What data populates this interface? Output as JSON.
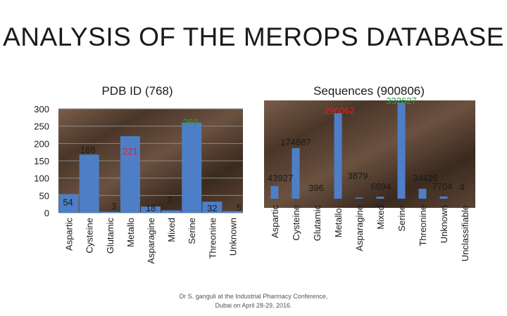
{
  "slide": {
    "title": "ANALYSIS OF THE MEROPS DATABASE",
    "footer": "Dr S. ganguli at the Industrial Pharmacy Conference, Dubai on April 28-29, 2016."
  },
  "colors": {
    "bar": "#4e7fc6",
    "panel_dark": "#3a2a1f",
    "panel_light": "#6b5140"
  },
  "chart_data": [
    {
      "type": "bar",
      "title": "PDB ID (768)",
      "categories": [
        "Aspartic",
        "Cysteine",
        "Glutamic",
        "Metallo",
        "Asparagine",
        "Mixed",
        "Serine",
        "Threonine",
        "Unknown"
      ],
      "values": [
        54,
        168,
        3,
        221,
        18,
        7,
        260,
        32,
        5
      ],
      "data_labels": [
        "54",
        "168",
        "3",
        "221",
        "18",
        "7",
        "260",
        "32",
        "5"
      ],
      "label_colors": [
        "#1a1a1a",
        "#1a1a1a",
        "#1a1a1a",
        "#e02020",
        "#1a1a1a",
        "#1a1a1a",
        "#27a34a",
        "#1a1a1a",
        "#1a1a1a"
      ],
      "yticks": [
        "0",
        "50",
        "100",
        "150",
        "200",
        "250",
        "300"
      ],
      "ylim": [
        0,
        300
      ],
      "xlabel": "",
      "ylabel": "",
      "grid": true
    },
    {
      "type": "bar",
      "title": "Sequences (900806)",
      "categories": [
        "Aspartic",
        "Cysteine",
        "Glutamic",
        "Metallo-",
        "Asparagine",
        "Mixed",
        "Serine",
        "Threonine",
        "Unknown",
        "Unclassifiable"
      ],
      "values": [
        43927,
        174887,
        396,
        296062,
        3879,
        6894,
        332627,
        34426,
        7704,
        4
      ],
      "data_labels": [
        "43927",
        "174887",
        "396",
        "296062",
        "3879",
        "6894",
        "332627",
        "34426",
        "7704",
        "4"
      ],
      "label_colors": [
        "#1a1a1a",
        "#1a1a1a",
        "#1a1a1a",
        "#e02020",
        "#1a1a1a",
        "#1a1a1a",
        "#27a34a",
        "#1a1a1a",
        "#1a1a1a",
        "#1a1a1a"
      ],
      "ylim": [
        0,
        340000
      ],
      "xlabel": "",
      "ylabel": "",
      "grid": false
    }
  ]
}
